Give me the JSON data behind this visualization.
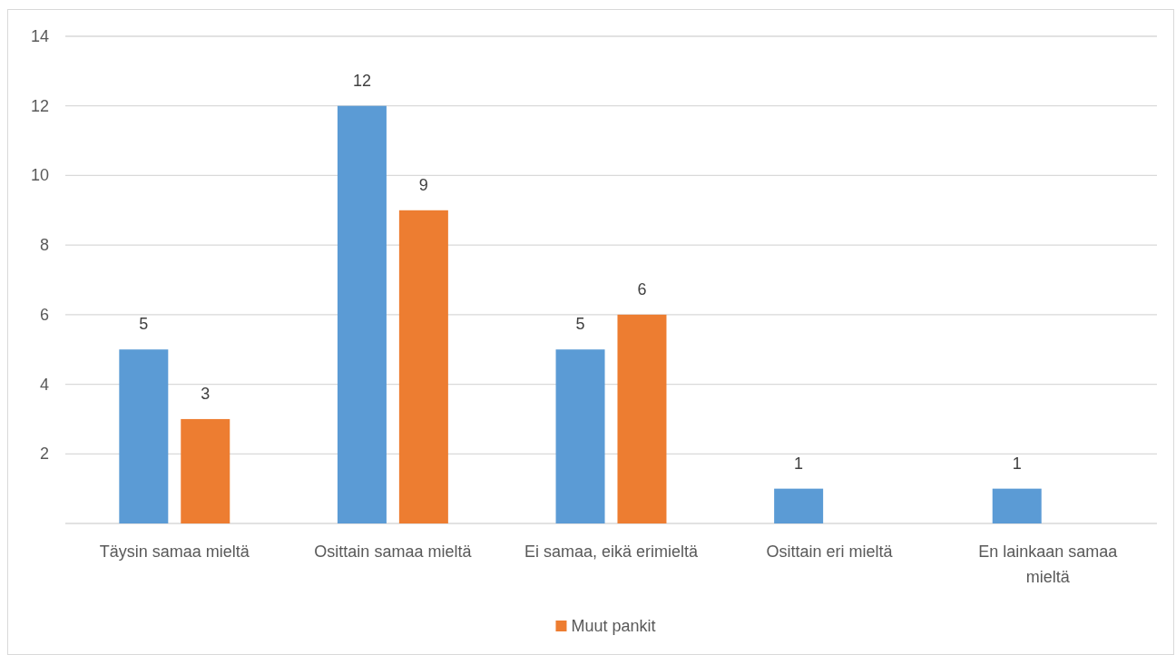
{
  "chart_data": {
    "type": "bar",
    "categories": [
      "Täysin samaa mieltä",
      "Osittain samaa mieltä",
      "Ei samaa, eikä erimieltä",
      "Osittain eri mieltä",
      "En lainkaan samaa mieltä"
    ],
    "series": [
      {
        "color": "#5b9bd5",
        "values": [
          5,
          12,
          5,
          1,
          1
        ]
      },
      {
        "name": "Muut pankit",
        "color": "#ed7d31",
        "values": [
          3,
          9,
          6,
          null,
          null
        ]
      }
    ],
    "ylim": [
      0,
      14
    ],
    "yticks": [
      2,
      4,
      6,
      8,
      10,
      12,
      14
    ],
    "grid": "y",
    "legend": "bottom",
    "data_labels": true
  }
}
